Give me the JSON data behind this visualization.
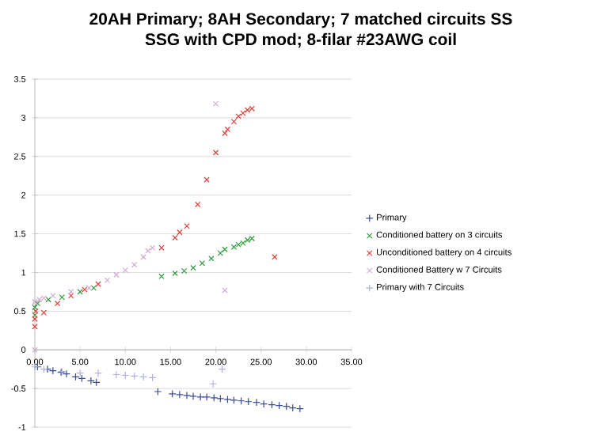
{
  "chart_data": {
    "type": "scatter",
    "title": "20AH Primary; 8AH Secondary; 7 matched circuits SS SSG with CPD mod; 8-filar #23AWG coil",
    "xlim": [
      0,
      35
    ],
    "ylim": [
      -1,
      3.5
    ],
    "xticks": [
      {
        "value": 0,
        "label": "0.00"
      },
      {
        "value": 5,
        "label": "5.00"
      },
      {
        "value": 10,
        "label": "10.00"
      },
      {
        "value": 15,
        "label": "15.00"
      },
      {
        "value": 20,
        "label": "20.00"
      },
      {
        "value": 25,
        "label": "25.00"
      },
      {
        "value": 30,
        "label": "30.00"
      },
      {
        "value": 35,
        "label": "35.00"
      }
    ],
    "yticks": [
      -1,
      -0.5,
      0,
      0.5,
      1,
      1.5,
      2,
      2.5,
      3,
      3.5
    ],
    "grid": "y",
    "legend": "right",
    "series": [
      {
        "name": "Primary",
        "color": "#3b4a9a",
        "marker": "plus",
        "x": [
          0.3,
          1.4,
          2,
          2.9,
          3.5,
          4.5,
          5.2,
          6.2,
          6.8,
          13.6,
          15.2,
          16,
          16.8,
          17.5,
          18.3,
          19,
          19.8,
          20.5,
          21.3,
          22,
          22.8,
          23.6,
          24.5,
          25.3,
          26.2,
          27,
          27.8,
          28.5,
          29.3
        ],
        "values": [
          -0.22,
          -0.25,
          -0.27,
          -0.29,
          -0.31,
          -0.35,
          -0.37,
          -0.4,
          -0.42,
          -0.54,
          -0.57,
          -0.58,
          -0.59,
          -0.6,
          -0.61,
          -0.61,
          -0.62,
          -0.63,
          -0.64,
          -0.65,
          -0.66,
          -0.67,
          -0.68,
          -0.7,
          -0.71,
          -0.72,
          -0.73,
          -0.75,
          -0.76
        ]
      },
      {
        "name": "Conditioned battery on 3 circuits",
        "color": "#2e9a3a",
        "marker": "cross",
        "x": [
          0,
          0,
          0.3,
          1.5,
          3,
          5,
          6.5,
          14,
          15.5,
          16.5,
          17.5,
          18.5,
          19.5,
          20.5,
          21,
          22,
          22.5,
          23,
          23.5,
          24
        ],
        "values": [
          0.45,
          0.55,
          0.6,
          0.65,
          0.68,
          0.75,
          0.8,
          0.95,
          0.99,
          1.02,
          1.06,
          1.12,
          1.18,
          1.25,
          1.3,
          1.33,
          1.36,
          1.38,
          1.42,
          1.44
        ]
      },
      {
        "name": "Unconditioned battery on 4 circuits",
        "color": "#e0403a",
        "marker": "cross",
        "x": [
          0,
          0,
          0.1,
          1,
          2.5,
          4,
          5.5,
          7,
          14,
          15.5,
          16,
          16.8,
          18,
          19,
          20,
          21,
          21.3,
          22,
          22.5,
          23,
          23.5,
          24,
          26.5
        ],
        "values": [
          0.3,
          0.4,
          0.5,
          0.48,
          0.6,
          0.7,
          0.78,
          0.85,
          1.32,
          1.45,
          1.52,
          1.6,
          1.88,
          2.2,
          2.55,
          2.8,
          2.85,
          2.95,
          3.02,
          3.06,
          3.1,
          3.12,
          1.2
        ]
      },
      {
        "name": "Conditioned Battery w 7 Circuits",
        "color": "#d4a8d4",
        "marker": "cross",
        "x": [
          0,
          0,
          0.5,
          1,
          2,
          4,
          6,
          8,
          9,
          10,
          11,
          12,
          12.5,
          13,
          20,
          21
        ],
        "values": [
          0,
          0.62,
          0.65,
          0.67,
          0.7,
          0.75,
          0.8,
          0.9,
          0.97,
          1.03,
          1.1,
          1.2,
          1.28,
          1.32,
          3.18,
          0.77
        ]
      },
      {
        "name": "Primary with 7 Circuits",
        "color": "#b0b0e0",
        "marker": "plus",
        "x": [
          0,
          1,
          3,
          5,
          7,
          9,
          10,
          11,
          12,
          13,
          19.7,
          20.7
        ],
        "values": [
          -0.22,
          -0.25,
          -0.28,
          -0.3,
          -0.3,
          -0.32,
          -0.33,
          -0.34,
          -0.35,
          -0.36,
          -0.44,
          -0.25
        ]
      }
    ]
  }
}
